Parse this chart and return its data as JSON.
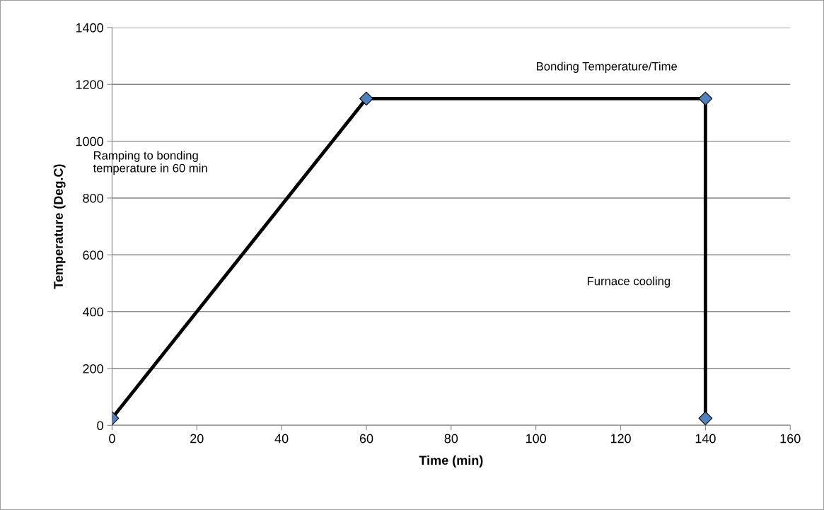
{
  "chart_data": {
    "type": "line",
    "xlabel": "Time (min)",
    "ylabel": "Temperature (Deg.C)",
    "x": [
      0,
      60,
      140,
      140
    ],
    "series": [
      {
        "color": "#000000",
        "colors": [
          "#4f81bd",
          "#4f81bd",
          "#4f81bd",
          "#4f81bd"
        ],
        "values": [
          25,
          1150,
          1150,
          25
        ]
      }
    ],
    "xlim": [
      0,
      160
    ],
    "xticks": [
      0,
      20,
      40,
      60,
      80,
      100,
      120,
      140,
      160
    ],
    "ylim": [
      0,
      1400
    ],
    "yticks": [
      0,
      200,
      400,
      600,
      800,
      1000,
      1200,
      1400
    ],
    "grid": "y",
    "marker": "diamond",
    "line_style": "solid",
    "legend": false,
    "annotations": [
      "Bonding Temperature/Time",
      "Ramping to bonding\ntemperature in 60 min",
      "Furnace cooling"
    ]
  }
}
